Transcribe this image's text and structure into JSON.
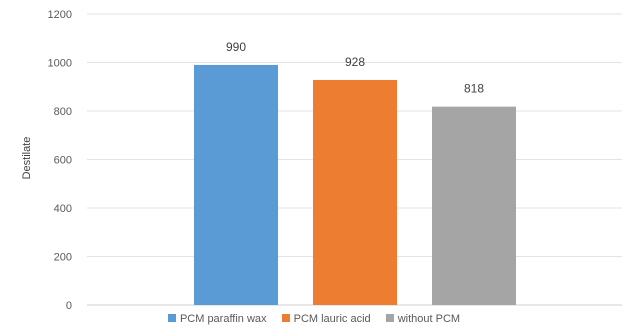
{
  "chart_data": {
    "type": "bar",
    "categories": [
      "PCM paraffin wax",
      "PCM lauric acid",
      "without PCM"
    ],
    "values": [
      990,
      928,
      818
    ],
    "data_labels": [
      "990",
      "928",
      "818"
    ],
    "colors": [
      "#5b9bd5",
      "#ed7d31",
      "#a5a5a5"
    ],
    "ylabel": "Destilate",
    "xlabel": "",
    "ylim": [
      0,
      1200
    ],
    "yticks": [
      0,
      200,
      400,
      600,
      800,
      1000,
      1200
    ],
    "ytick_labels": [
      "0",
      "200",
      "400",
      "600",
      "800",
      "1000",
      "1200"
    ],
    "grid": true,
    "legend": {
      "position": "bottom",
      "items": [
        "PCM paraffin wax",
        "PCM lauric acid",
        "without PCM"
      ]
    }
  }
}
